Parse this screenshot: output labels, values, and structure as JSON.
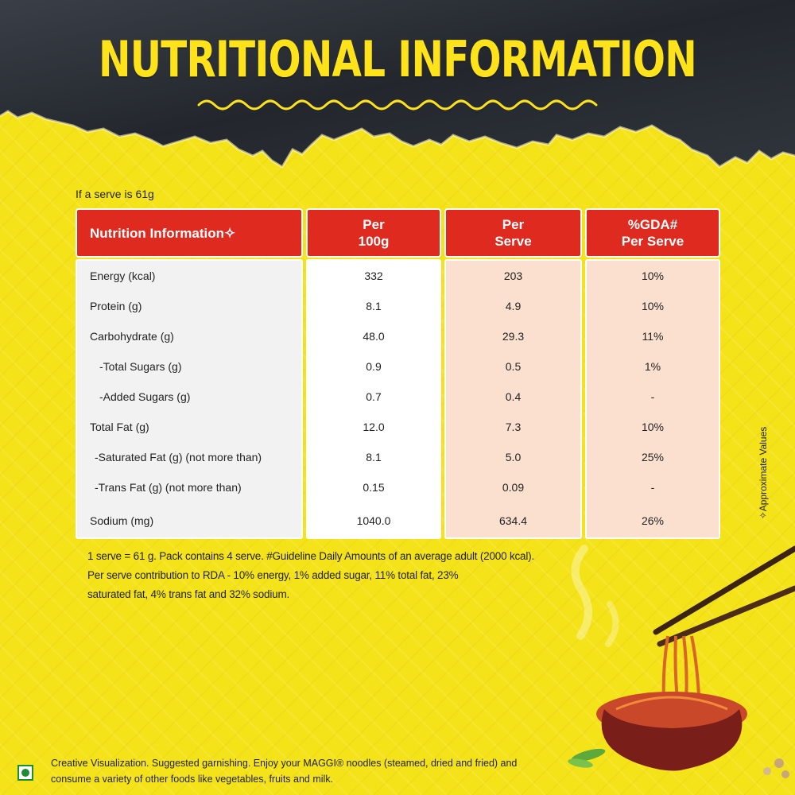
{
  "title": "NUTRITIONAL INFORMATION",
  "serve_note": "If a serve is 61g",
  "table": {
    "headers": {
      "nutrient": "Nutrition Information✧",
      "per100_line1": "Per",
      "per100_line2": "100g",
      "perserve_line1": "Per",
      "perserve_line2": "Serve",
      "gda_line1": "%GDA#",
      "gda_line2": "Per Serve"
    },
    "rows": [
      {
        "label": "Energy (kcal)",
        "per100": "332",
        "perserve": "203",
        "gda": "10%"
      },
      {
        "label": "Protein (g)",
        "per100": "8.1",
        "perserve": "4.9",
        "gda": "10%"
      },
      {
        "label": "Carbohydrate (g)",
        "per100": "48.0",
        "perserve": "29.3",
        "gda": "11%"
      },
      {
        "label": "  -Total Sugars (g)",
        "per100": "0.9",
        "perserve": "0.5",
        "gda": "1%"
      },
      {
        "label": "  -Added Sugars (g)",
        "per100": "0.7",
        "perserve": "0.4",
        "gda": "-"
      },
      {
        "label": "Total Fat (g)",
        "per100": "12.0",
        "perserve": "7.3",
        "gda": "10%"
      },
      {
        "label": "  -Saturated Fat (g) (not more than)",
        "per100": "8.1",
        "perserve": "5.0",
        "gda": "25%"
      },
      {
        "label": "  -Trans Fat (g) (not more than)",
        "per100": "0.15",
        "perserve": "0.09",
        "gda": "-"
      },
      {
        "label": "Sodium (mg)",
        "per100": "1040.0",
        "perserve": "634.4",
        "gda": "26%"
      }
    ]
  },
  "approx_note": "✧Approximate Values",
  "footnote": {
    "line1": "1 serve = 61 g. Pack contains 4 serve. #Guideline Daily Amounts of an average adult  (2000 kcal).",
    "line2": "Per serve contribution to RDA - 10% energy, 1% added sugar, 11% total fat,  23%",
    "line3": "saturated fat, 4% trans fat and 32% sodium."
  },
  "disclaimer": {
    "line1": "Creative Visualization. Suggested garnishing. Enjoy your MAGGI® noodles (steamed, dried and fried) and",
    "line2": "consume a variety of other foods like vegetables, fruits and milk."
  },
  "colors": {
    "yellow": "#f5e31a",
    "slate": "#2b2f36",
    "header_red": "#de2a1f",
    "peach": "#fbe0cf",
    "veg_green": "#1c8d33"
  },
  "icons": [
    "veg-symbol-icon",
    "noodle-bowl-illustration",
    "chopsticks-icon"
  ]
}
